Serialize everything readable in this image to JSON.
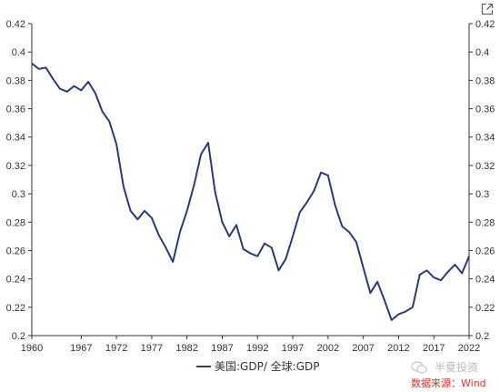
{
  "chart_data": {
    "type": "line",
    "title": "",
    "xlabel": "",
    "ylabel": "",
    "xlim": [
      1960,
      2022
    ],
    "ylim": [
      0.2,
      0.42
    ],
    "x_ticks": [
      "1960",
      "1967",
      "1972",
      "1977",
      "1982",
      "1987",
      "1992",
      "1997",
      "2002",
      "2007",
      "2012",
      "2017",
      "2022"
    ],
    "y_ticks": [
      "0.42",
      "0.4",
      "0.38",
      "0.36",
      "0.34",
      "0.32",
      "0.3",
      "0.28",
      "0.26",
      "0.24",
      "0.22",
      "0.2"
    ],
    "dual_y_axis": true,
    "grid": false,
    "legend_position": "bottom-center",
    "series": [
      {
        "name": "美国:GDP/ 全球:GDP",
        "color": "#2b3a7a",
        "x": [
          1960,
          1961,
          1962,
          1963,
          1964,
          1965,
          1966,
          1967,
          1968,
          1969,
          1970,
          1971,
          1972,
          1973,
          1974,
          1975,
          1976,
          1977,
          1978,
          1979,
          1980,
          1981,
          1982,
          1983,
          1984,
          1985,
          1986,
          1987,
          1988,
          1989,
          1990,
          1991,
          1992,
          1993,
          1994,
          1995,
          1996,
          1997,
          1998,
          1999,
          2000,
          2001,
          2002,
          2003,
          2004,
          2005,
          2006,
          2007,
          2008,
          2009,
          2010,
          2011,
          2012,
          2013,
          2014,
          2015,
          2016,
          2017,
          2018,
          2019,
          2020,
          2021,
          2022
        ],
        "values": [
          0.392,
          0.388,
          0.389,
          0.381,
          0.374,
          0.372,
          0.376,
          0.373,
          0.379,
          0.371,
          0.358,
          0.351,
          0.335,
          0.305,
          0.288,
          0.282,
          0.288,
          0.283,
          0.271,
          0.262,
          0.252,
          0.273,
          0.288,
          0.306,
          0.328,
          0.336,
          0.301,
          0.28,
          0.27,
          0.278,
          0.261,
          0.258,
          0.256,
          0.265,
          0.262,
          0.246,
          0.254,
          0.27,
          0.287,
          0.294,
          0.302,
          0.315,
          0.313,
          0.292,
          0.277,
          0.273,
          0.266,
          0.248,
          0.23,
          0.238,
          0.225,
          0.211,
          0.215,
          0.217,
          0.22,
          0.243,
          0.246,
          0.241,
          0.239,
          0.245,
          0.25,
          0.244,
          0.256
        ]
      }
    ]
  },
  "watermark": {
    "brand": "半夏投资",
    "source": "数据来源：Wind"
  },
  "icons": {
    "expand": "expand-icon",
    "watermark_logo": "wechat-logo-icon"
  }
}
